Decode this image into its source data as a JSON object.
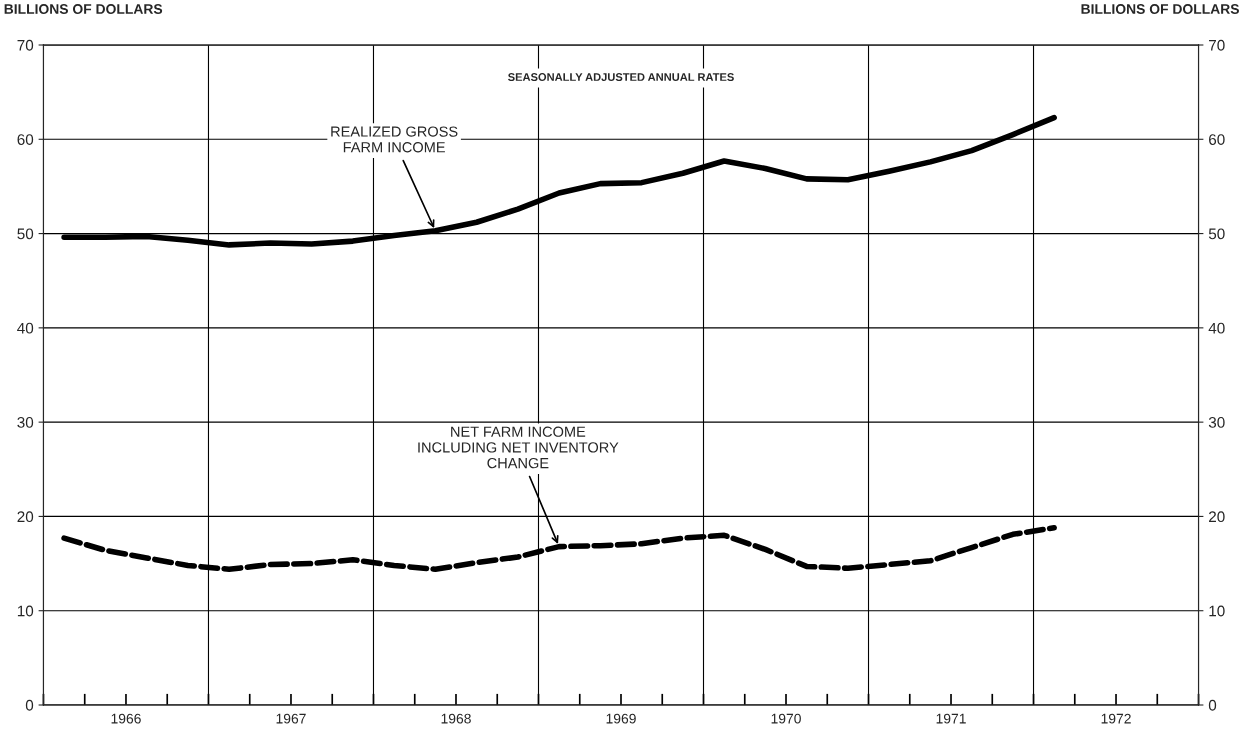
{
  "chart_data": {
    "type": "line",
    "ylabel": "BILLIONS OF DOLLARS",
    "y2label": "BILLIONS OF DOLLARS",
    "xlim": [
      1966,
      1973
    ],
    "ylim": [
      0,
      70
    ],
    "y2lim": [
      0,
      70
    ],
    "yticks": [
      0,
      10,
      20,
      30,
      40,
      50,
      60,
      70
    ],
    "y2ticks": [
      0,
      10,
      20,
      30,
      40,
      50,
      60,
      70
    ],
    "xticks": [
      {
        "value": 1966,
        "label": null
      },
      {
        "value": 1966.25,
        "label": null
      },
      {
        "value": 1966.5,
        "label": "1966"
      },
      {
        "value": 1966.75,
        "label": null
      },
      {
        "value": 1967,
        "label": null
      },
      {
        "value": 1967.25,
        "label": null
      },
      {
        "value": 1967.5,
        "label": "1967"
      },
      {
        "value": 1967.75,
        "label": null
      },
      {
        "value": 1968,
        "label": null
      },
      {
        "value": 1968.25,
        "label": null
      },
      {
        "value": 1968.5,
        "label": "1968"
      },
      {
        "value": 1968.75,
        "label": null
      },
      {
        "value": 1969,
        "label": null
      },
      {
        "value": 1969.25,
        "label": null
      },
      {
        "value": 1969.5,
        "label": "1969"
      },
      {
        "value": 1969.75,
        "label": null
      },
      {
        "value": 1970,
        "label": null
      },
      {
        "value": 1970.25,
        "label": null
      },
      {
        "value": 1970.5,
        "label": "1970"
      },
      {
        "value": 1970.75,
        "label": null
      },
      {
        "value": 1971,
        "label": null
      },
      {
        "value": 1971.25,
        "label": null
      },
      {
        "value": 1971.5,
        "label": "1971"
      },
      {
        "value": 1971.75,
        "label": null
      },
      {
        "value": 1972,
        "label": null
      },
      {
        "value": 1972.25,
        "label": null
      },
      {
        "value": 1972.5,
        "label": "1972"
      },
      {
        "value": 1972.75,
        "label": null
      },
      {
        "value": 1973,
        "label": null
      }
    ],
    "grid": "y",
    "legend": false,
    "marker": "none",
    "x": [
      1966.125,
      1966.375,
      1966.625,
      1966.875,
      1967.125,
      1967.375,
      1967.625,
      1967.875,
      1968.125,
      1968.375,
      1968.625,
      1968.875,
      1969.125,
      1969.375,
      1969.625,
      1969.875,
      1970.125,
      1970.375,
      1970.625,
      1970.875,
      1971.125,
      1971.375,
      1971.625,
      1971.875,
      1972.125
    ],
    "series": [
      {
        "color": "#000000",
        "line_style": "solid",
        "values": [
          49.6,
          49.6,
          49.7,
          49.3,
          48.8,
          49.0,
          48.9,
          49.2,
          49.8,
          50.3,
          51.2,
          52.6,
          54.3,
          55.3,
          55.4,
          56.4,
          57.7,
          56.9,
          55.8,
          55.7,
          56.6,
          57.6,
          58.8,
          60.5,
          62.3
        ]
      },
      {
        "color": "#000000",
        "line_style": "dashed",
        "values": [
          17.7,
          16.4,
          15.6,
          14.8,
          14.4,
          14.9,
          15.0,
          15.4,
          14.8,
          14.4,
          15.1,
          15.7,
          16.8,
          16.9,
          17.1,
          17.7,
          18.0,
          16.5,
          14.7,
          14.5,
          14.9,
          15.3,
          16.7,
          18.1,
          18.8
        ]
      }
    ],
    "ref_lines": [
      {
        "axis": "x",
        "value": 1967
      },
      {
        "axis": "x",
        "value": 1968
      },
      {
        "axis": "x",
        "value": 1969
      },
      {
        "axis": "x",
        "value": 1970
      },
      {
        "axis": "x",
        "value": 1971
      },
      {
        "axis": "x",
        "value": 1972
      }
    ],
    "annotations": [
      "SEASONALLY ADJUSTED ANNUAL RATES",
      {
        "text": "REALIZED GROSS\nFARM INCOME",
        "x": 1968.375,
        "y": 50.3
      },
      {
        "text": "NET FARM INCOME\nINCLUDING NET INVENTORY\nCHANGE",
        "x": 1969.125,
        "y": 16.8
      }
    ]
  }
}
